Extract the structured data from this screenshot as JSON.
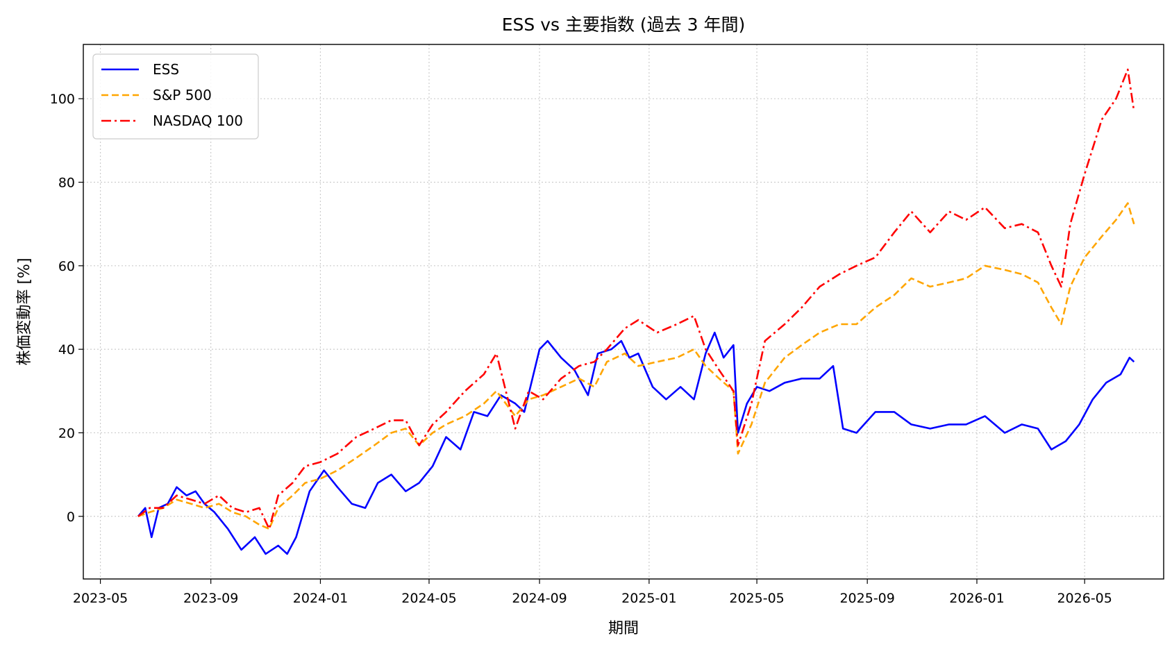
{
  "chart_data": {
    "type": "line",
    "title": "ESS vs 主要指数 (過去 3 年間)",
    "xlabel": "期間",
    "ylabel": "株価変動率 [%]",
    "xlim": [
      "2023-04-12",
      "2026-07-28"
    ],
    "ylim": [
      -15,
      113
    ],
    "x_ticks": [
      "2023-05",
      "2023-09",
      "2024-01",
      "2024-05",
      "2024-09",
      "2025-01",
      "2025-05",
      "2025-09",
      "2026-01",
      "2026-05"
    ],
    "y_ticks": [
      0,
      20,
      40,
      60,
      80,
      100
    ],
    "grid": true,
    "legend_position": "top-left",
    "series": [
      {
        "name": "ESS",
        "color": "#0000ff",
        "dash": "solid",
        "points": [
          [
            "2023-06-12",
            0
          ],
          [
            "2023-06-20",
            2
          ],
          [
            "2023-06-27",
            -5
          ],
          [
            "2023-07-05",
            2
          ],
          [
            "2023-07-15",
            3
          ],
          [
            "2023-07-25",
            7
          ],
          [
            "2023-08-05",
            5
          ],
          [
            "2023-08-15",
            6
          ],
          [
            "2023-08-25",
            3
          ],
          [
            "2023-09-05",
            1
          ],
          [
            "2023-09-20",
            -3
          ],
          [
            "2023-10-05",
            -8
          ],
          [
            "2023-10-20",
            -5
          ],
          [
            "2023-11-01",
            -9
          ],
          [
            "2023-11-15",
            -7
          ],
          [
            "2023-11-25",
            -9
          ],
          [
            "2023-12-05",
            -5
          ],
          [
            "2023-12-20",
            6
          ],
          [
            "2024-01-05",
            11
          ],
          [
            "2024-01-20",
            7
          ],
          [
            "2024-02-05",
            3
          ],
          [
            "2024-02-20",
            2
          ],
          [
            "2024-03-05",
            8
          ],
          [
            "2024-03-20",
            10
          ],
          [
            "2024-04-05",
            6
          ],
          [
            "2024-04-20",
            8
          ],
          [
            "2024-05-05",
            12
          ],
          [
            "2024-05-20",
            19
          ],
          [
            "2024-06-05",
            16
          ],
          [
            "2024-06-20",
            25
          ],
          [
            "2024-07-05",
            24
          ],
          [
            "2024-07-20",
            29
          ],
          [
            "2024-08-05",
            27
          ],
          [
            "2024-08-15",
            25
          ],
          [
            "2024-09-01",
            40
          ],
          [
            "2024-09-10",
            42
          ],
          [
            "2024-09-25",
            38
          ],
          [
            "2024-10-10",
            35
          ],
          [
            "2024-10-25",
            29
          ],
          [
            "2024-11-05",
            39
          ],
          [
            "2024-11-20",
            40
          ],
          [
            "2024-12-01",
            42
          ],
          [
            "2024-12-10",
            38
          ],
          [
            "2024-12-20",
            39
          ],
          [
            "2025-01-05",
            31
          ],
          [
            "2025-01-20",
            28
          ],
          [
            "2025-02-05",
            31
          ],
          [
            "2025-02-20",
            28
          ],
          [
            "2025-03-05",
            39
          ],
          [
            "2025-03-15",
            44
          ],
          [
            "2025-03-25",
            38
          ],
          [
            "2025-04-05",
            41
          ],
          [
            "2025-04-10",
            20
          ],
          [
            "2025-04-20",
            27
          ],
          [
            "2025-05-01",
            31
          ],
          [
            "2025-05-15",
            30
          ],
          [
            "2025-06-01",
            32
          ],
          [
            "2025-06-20",
            33
          ],
          [
            "2025-07-10",
            33
          ],
          [
            "2025-07-25",
            36
          ],
          [
            "2025-08-05",
            21
          ],
          [
            "2025-08-20",
            20
          ],
          [
            "2025-09-10",
            25
          ],
          [
            "2025-10-01",
            25
          ],
          [
            "2025-10-20",
            22
          ],
          [
            "2025-11-10",
            21
          ],
          [
            "2025-12-01",
            22
          ],
          [
            "2025-12-20",
            22
          ],
          [
            "2026-01-10",
            24
          ],
          [
            "2026-02-01",
            20
          ],
          [
            "2026-02-20",
            22
          ],
          [
            "2026-03-10",
            21
          ],
          [
            "2026-03-25",
            16
          ],
          [
            "2026-04-10",
            18
          ],
          [
            "2026-04-25",
            22
          ],
          [
            "2026-05-10",
            28
          ],
          [
            "2026-05-25",
            32
          ],
          [
            "2026-06-10",
            34
          ],
          [
            "2026-06-20",
            38
          ],
          [
            "2026-06-25",
            37
          ]
        ]
      },
      {
        "name": "S&P 500",
        "color": "#ffa500",
        "dash": "dashed",
        "points": [
          [
            "2023-06-12",
            0
          ],
          [
            "2023-06-25",
            1
          ],
          [
            "2023-07-10",
            2
          ],
          [
            "2023-07-25",
            4
          ],
          [
            "2023-08-10",
            3
          ],
          [
            "2023-08-25",
            2
          ],
          [
            "2023-09-10",
            3
          ],
          [
            "2023-09-25",
            1
          ],
          [
            "2023-10-10",
            0
          ],
          [
            "2023-10-25",
            -2
          ],
          [
            "2023-11-05",
            -3
          ],
          [
            "2023-11-15",
            2
          ],
          [
            "2023-12-01",
            5
          ],
          [
            "2023-12-15",
            8
          ],
          [
            "2024-01-01",
            9
          ],
          [
            "2024-01-20",
            11
          ],
          [
            "2024-02-10",
            14
          ],
          [
            "2024-03-01",
            17
          ],
          [
            "2024-03-20",
            20
          ],
          [
            "2024-04-05",
            21
          ],
          [
            "2024-04-20",
            17
          ],
          [
            "2024-05-05",
            20
          ],
          [
            "2024-05-20",
            22
          ],
          [
            "2024-06-10",
            24
          ],
          [
            "2024-07-01",
            27
          ],
          [
            "2024-07-15",
            30
          ],
          [
            "2024-08-05",
            24
          ],
          [
            "2024-08-20",
            28
          ],
          [
            "2024-09-05",
            29
          ],
          [
            "2024-09-25",
            31
          ],
          [
            "2024-10-15",
            33
          ],
          [
            "2024-11-01",
            31
          ],
          [
            "2024-11-15",
            37
          ],
          [
            "2024-12-05",
            39
          ],
          [
            "2024-12-20",
            36
          ],
          [
            "2025-01-10",
            37
          ],
          [
            "2025-02-01",
            38
          ],
          [
            "2025-02-20",
            40
          ],
          [
            "2025-03-05",
            36
          ],
          [
            "2025-03-20",
            33
          ],
          [
            "2025-04-05",
            30
          ],
          [
            "2025-04-10",
            15
          ],
          [
            "2025-04-25",
            22
          ],
          [
            "2025-05-10",
            32
          ],
          [
            "2025-06-01",
            38
          ],
          [
            "2025-06-20",
            41
          ],
          [
            "2025-07-10",
            44
          ],
          [
            "2025-08-01",
            46
          ],
          [
            "2025-08-20",
            46
          ],
          [
            "2025-09-10",
            50
          ],
          [
            "2025-10-01",
            53
          ],
          [
            "2025-10-20",
            57
          ],
          [
            "2025-11-10",
            55
          ],
          [
            "2025-12-01",
            56
          ],
          [
            "2025-12-20",
            57
          ],
          [
            "2026-01-10",
            60
          ],
          [
            "2026-02-01",
            59
          ],
          [
            "2026-02-20",
            58
          ],
          [
            "2026-03-10",
            56
          ],
          [
            "2026-03-25",
            50
          ],
          [
            "2026-04-05",
            46
          ],
          [
            "2026-04-15",
            55
          ],
          [
            "2026-05-01",
            62
          ],
          [
            "2026-05-20",
            67
          ],
          [
            "2026-06-05",
            71
          ],
          [
            "2026-06-18",
            75
          ],
          [
            "2026-06-25",
            70
          ]
        ]
      },
      {
        "name": "NASDAQ 100",
        "color": "#ff0000",
        "dash": "dashdot",
        "points": [
          [
            "2023-06-12",
            0
          ],
          [
            "2023-06-25",
            2
          ],
          [
            "2023-07-10",
            2
          ],
          [
            "2023-07-25",
            5
          ],
          [
            "2023-08-10",
            4
          ],
          [
            "2023-08-25",
            3
          ],
          [
            "2023-09-10",
            5
          ],
          [
            "2023-09-25",
            2
          ],
          [
            "2023-10-10",
            1
          ],
          [
            "2023-10-25",
            2
          ],
          [
            "2023-11-05",
            -3
          ],
          [
            "2023-11-15",
            5
          ],
          [
            "2023-12-01",
            8
          ],
          [
            "2023-12-15",
            12
          ],
          [
            "2024-01-01",
            13
          ],
          [
            "2024-01-20",
            15
          ],
          [
            "2024-02-10",
            19
          ],
          [
            "2024-03-01",
            21
          ],
          [
            "2024-03-20",
            23
          ],
          [
            "2024-04-05",
            23
          ],
          [
            "2024-04-20",
            17
          ],
          [
            "2024-05-05",
            22
          ],
          [
            "2024-05-20",
            25
          ],
          [
            "2024-06-10",
            30
          ],
          [
            "2024-07-01",
            34
          ],
          [
            "2024-07-15",
            39
          ],
          [
            "2024-08-05",
            21
          ],
          [
            "2024-08-20",
            30
          ],
          [
            "2024-09-05",
            28
          ],
          [
            "2024-09-25",
            33
          ],
          [
            "2024-10-15",
            36
          ],
          [
            "2024-11-01",
            37
          ],
          [
            "2024-11-15",
            40
          ],
          [
            "2024-12-05",
            45
          ],
          [
            "2024-12-20",
            47
          ],
          [
            "2025-01-10",
            44
          ],
          [
            "2025-02-01",
            46
          ],
          [
            "2025-02-20",
            48
          ],
          [
            "2025-03-05",
            40
          ],
          [
            "2025-03-20",
            35
          ],
          [
            "2025-04-05",
            30
          ],
          [
            "2025-04-10",
            17
          ],
          [
            "2025-04-25",
            27
          ],
          [
            "2025-05-10",
            42
          ],
          [
            "2025-06-01",
            46
          ],
          [
            "2025-06-20",
            50
          ],
          [
            "2025-07-10",
            55
          ],
          [
            "2025-08-01",
            58
          ],
          [
            "2025-08-20",
            60
          ],
          [
            "2025-09-10",
            62
          ],
          [
            "2025-10-01",
            68
          ],
          [
            "2025-10-20",
            73
          ],
          [
            "2025-11-10",
            68
          ],
          [
            "2025-12-01",
            73
          ],
          [
            "2025-12-20",
            71
          ],
          [
            "2026-01-10",
            74
          ],
          [
            "2026-02-01",
            69
          ],
          [
            "2026-02-20",
            70
          ],
          [
            "2026-03-10",
            68
          ],
          [
            "2026-03-25",
            60
          ],
          [
            "2026-04-05",
            55
          ],
          [
            "2026-04-15",
            70
          ],
          [
            "2026-05-01",
            82
          ],
          [
            "2026-05-20",
            95
          ],
          [
            "2026-06-05",
            100
          ],
          [
            "2026-06-18",
            107
          ],
          [
            "2026-06-25",
            97
          ]
        ]
      }
    ]
  }
}
